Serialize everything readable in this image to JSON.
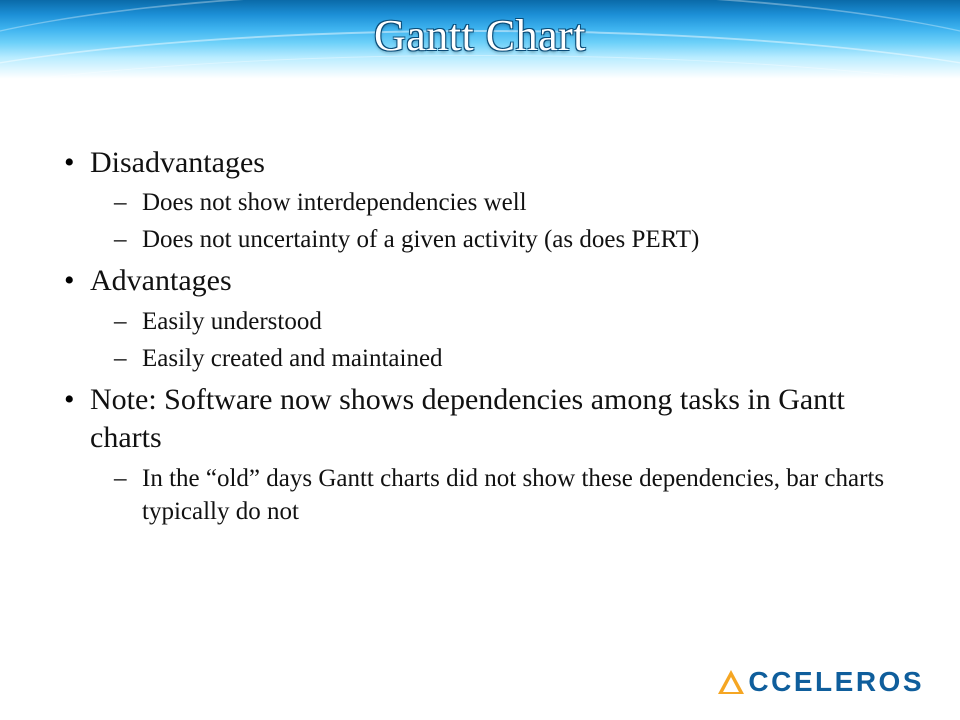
{
  "title": "Gantt Chart",
  "header": {
    "gradient_colors": [
      "#0a6aa8",
      "#1c8fd6",
      "#3eb3ef",
      "#6fd1f9",
      "#b9ecff",
      "#ffffff"
    ],
    "title_color": "#ffffff",
    "title_outline": "#0a4c78",
    "title_fontsize": 44
  },
  "bullets": {
    "level1_fontsize": 30,
    "level2_fontsize": 25,
    "text_color": "#111111",
    "items": [
      {
        "text": "Disadvantages",
        "sub": [
          "Does not show interdependencies well",
          "Does not uncertainty of a given activity (as does PERT)"
        ]
      },
      {
        "text": "Advantages",
        "sub": [
          "Easily understood",
          "Easily created and maintained"
        ]
      },
      {
        "text": "Note: Software now shows dependencies among tasks in Gantt charts",
        "sub": [
          "In the “old” days Gantt charts did not show these dependencies, bar charts typically do not"
        ]
      }
    ]
  },
  "logo": {
    "text": "CCELEROS",
    "text_color": "#0f5e9c",
    "triangle_color": "#f5a623",
    "fontsize": 28
  }
}
